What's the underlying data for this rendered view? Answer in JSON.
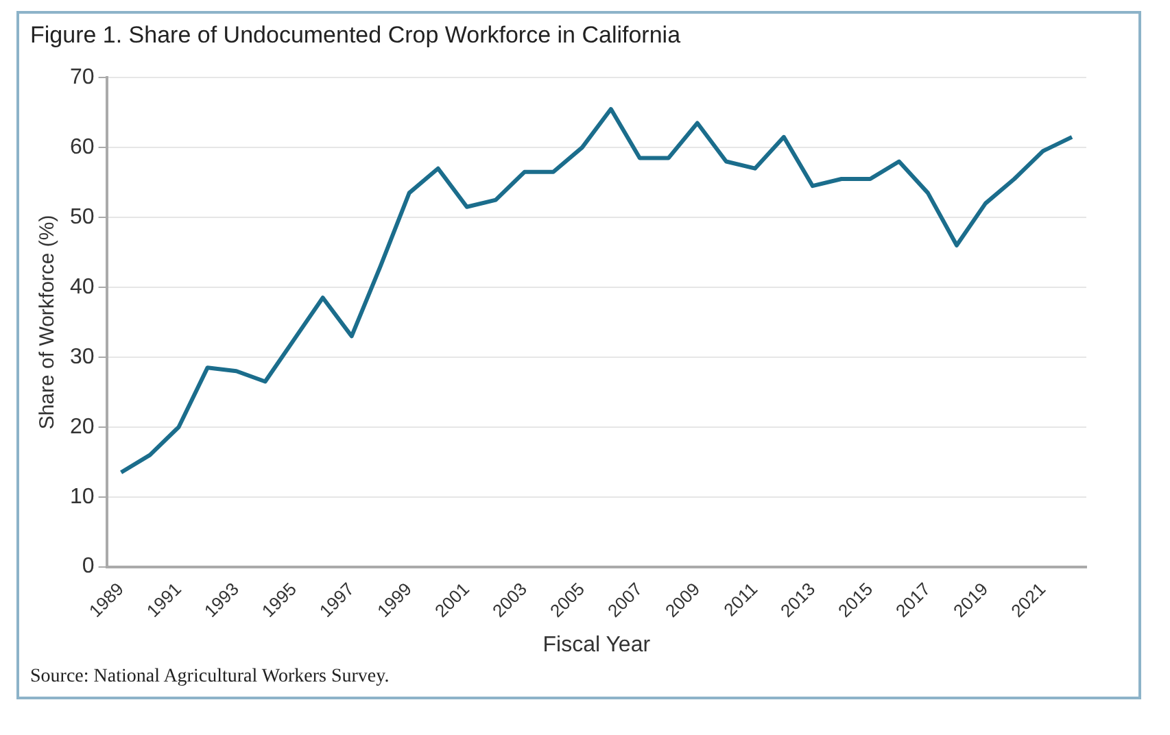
{
  "chart_data": {
    "type": "line",
    "title": "Figure 1. Share of Undocumented Crop Workforce in California",
    "xlabel": "Fiscal Year",
    "ylabel": "Share of Workforce (%)",
    "categories": [
      "1989",
      null,
      "1991",
      null,
      "1993",
      null,
      "1995",
      null,
      "1997",
      null,
      "1999",
      null,
      "2001",
      null,
      "2003",
      null,
      "2005",
      null,
      "2007",
      null,
      "2009",
      null,
      "2011",
      null,
      "2013",
      null,
      "2015",
      null,
      "2017",
      null,
      "2019",
      null,
      "2021",
      null
    ],
    "series": [
      {
        "color": "#1b6d8c",
        "values": [
          13.5,
          16,
          20,
          28.5,
          28,
          26.5,
          32.5,
          38.5,
          33,
          43,
          53.5,
          57,
          51.5,
          52.5,
          56.5,
          56.5,
          60,
          65.5,
          58.5,
          58.5,
          63.5,
          58,
          57,
          61.5,
          54.5,
          55.5,
          55.5,
          58,
          53.5,
          46,
          52,
          55.5,
          59.5,
          61.5
        ]
      }
    ],
    "ylim": [
      0,
      70
    ],
    "yticks": [
      0,
      10,
      20,
      30,
      40,
      50,
      60,
      70
    ],
    "grid": "y",
    "legend": false,
    "marker": "none",
    "line_style": "solid",
    "annotations": [
      "Source: National Agricultural Workers Survey."
    ]
  }
}
